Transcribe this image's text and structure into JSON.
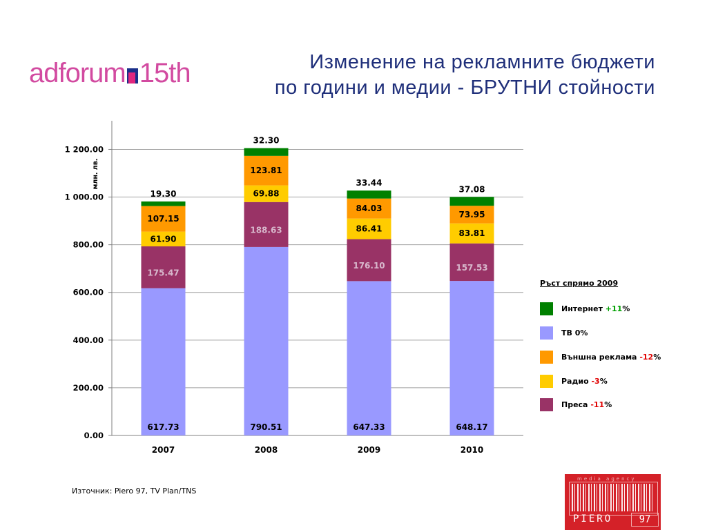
{
  "logo": {
    "left": "adforum",
    "right": "15th"
  },
  "title": {
    "line1": "Изменение на рекламните бюджети",
    "line2": "по години и медии - БРУТНИ стойности"
  },
  "chart_data": {
    "type": "bar",
    "stacked": true,
    "categories": [
      "2007",
      "2008",
      "2009",
      "2010"
    ],
    "series": [
      {
        "name": "ТВ",
        "color": "#9999ff",
        "label_color": "#000000",
        "values": [
          617.73,
          790.51,
          647.33,
          648.17
        ]
      },
      {
        "name": "Преса",
        "color": "#993366",
        "label_color": "#d8b8cc",
        "values": [
          175.47,
          188.63,
          176.1,
          157.53
        ]
      },
      {
        "name": "Радио",
        "color": "#ffcc00",
        "label_color": "#000000",
        "values": [
          61.9,
          69.88,
          86.41,
          83.81
        ]
      },
      {
        "name": "Външна реклама",
        "color": "#ff9900",
        "label_color": "#000000",
        "values": [
          107.15,
          123.81,
          84.03,
          73.95
        ]
      },
      {
        "name": "Интернет",
        "color": "#008000",
        "label_color": "#000000",
        "values": [
          19.3,
          32.3,
          33.44,
          37.08
        ]
      }
    ],
    "value_labels": [
      [
        "617.73",
        "175.47",
        "61.90",
        "107.15",
        "19.30"
      ],
      [
        "790.51",
        "188.63",
        "69.88",
        "123.81",
        "32.30"
      ],
      [
        "647.33",
        "176.10",
        "86.41",
        "84.03",
        "33.44"
      ],
      [
        "648.17",
        "157.53",
        "83.81",
        "73.95",
        "37.08"
      ]
    ],
    "ylabel": "млн. лв.",
    "ylim": [
      0,
      1320
    ],
    "yticks": [
      0,
      200,
      400,
      600,
      800,
      1000,
      1200
    ],
    "ytick_labels": [
      "0.00",
      "200.00",
      "400.00",
      "600.00",
      "800.00",
      "1 000.00",
      "1 200.00"
    ],
    "grid": true,
    "legend_position": "right"
  },
  "legend": {
    "title": "Ръст спрямо 2009",
    "items": [
      {
        "label": "Интернет",
        "change": "+11",
        "suffix": "%",
        "swatch": "#008000",
        "change_color": "#00a000"
      },
      {
        "label": "ТВ",
        "change": "0",
        "suffix": "%",
        "swatch": "#9999ff",
        "change_color": "#000000"
      },
      {
        "label": "Външна реклама",
        "change": "-12",
        "suffix": "%",
        "swatch": "#ff9900",
        "change_color": "#e00000"
      },
      {
        "label": "Радио",
        "change": "-3",
        "suffix": "%",
        "swatch": "#ffcc00",
        "change_color": "#e00000"
      },
      {
        "label": "Преса",
        "change": "-11",
        "suffix": "%",
        "swatch": "#993366",
        "change_color": "#e00000"
      }
    ]
  },
  "source": "Източник: Piero 97, TV Plan/TNS",
  "brand": {
    "tagline": "media agency",
    "name": "PIERO",
    "number": "97",
    "color": "#d42128"
  }
}
